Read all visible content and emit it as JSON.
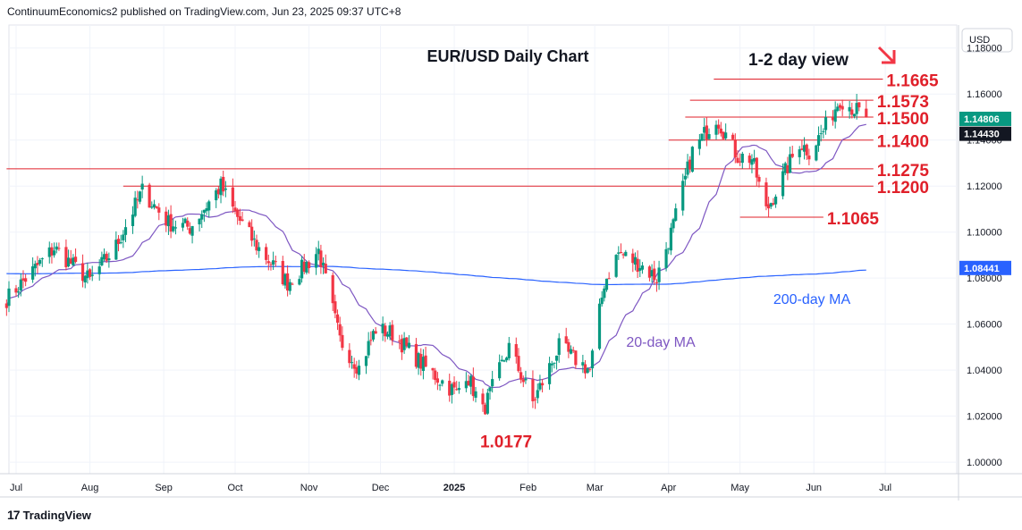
{
  "header": {
    "attribution": "ContinuumEconomics2 published on TradingView.com, Jun 23, 2025 09:37 UTC+8"
  },
  "footer": {
    "brand": "TradingView",
    "logo_glyph": "17"
  },
  "chart_data": {
    "type": "candlestick",
    "title": "EUR/USD Daily Chart",
    "subtitle": "1-2 day view",
    "currency": "USD",
    "colors": {
      "up": "#089981",
      "down": "#f23645",
      "ma20": "#7e57c2",
      "ma200": "#2962ff",
      "level": "#e0202a",
      "label": "#e0202a",
      "last": "#089981",
      "ma200_tag": "#2962ff"
    },
    "ylim": [
      0.995,
      1.19
    ],
    "y_ticks": [
      "1.00000",
      "1.02000",
      "1.04000",
      "1.06000",
      "1.08000",
      "1.10000",
      "1.12000",
      "1.14000",
      "1.16000",
      "1.18000"
    ],
    "x_ticks": [
      "Jul",
      "Aug",
      "Sep",
      "Oct",
      "Nov",
      "Dec",
      "2025",
      "Feb",
      "Mar",
      "Apr",
      "May",
      "Jun",
      "Jul"
    ],
    "levels": [
      {
        "label": "1.1665",
        "value": 1.1665,
        "from": "2025-04-20",
        "to": "2025-06-30"
      },
      {
        "label": "1.1573",
        "value": 1.1573,
        "from": "2025-04-10",
        "to": "2025-06-26"
      },
      {
        "label": "1.1500",
        "value": 1.15,
        "from": "2025-04-08",
        "to": "2025-06-26"
      },
      {
        "label": "1.1400",
        "value": 1.14,
        "from": "2025-04-01",
        "to": "2025-06-26"
      },
      {
        "label": "1.1275",
        "value": 1.1275,
        "from": "2024-06-27",
        "to": "2025-06-26"
      },
      {
        "label": "1.1200",
        "value": 1.12,
        "from": "2024-08-15",
        "to": "2025-06-26"
      },
      {
        "label": "1.1065",
        "value": 1.1065,
        "from": "2025-05-01",
        "to": "2025-06-05"
      }
    ],
    "low_label": {
      "label": "1.0177",
      "value": 1.0177,
      "date": "2025-01-13"
    },
    "ma_labels": {
      "ma20": "20-day MA",
      "ma200": "200-day MA"
    },
    "last_price": {
      "value": 1.14806,
      "label": "1.14806"
    },
    "ma20_price": {
      "value": 1.1443,
      "label": "1.14430"
    },
    "ma200_price": {
      "value": 1.08441,
      "label": "1.08441"
    },
    "anchors": [
      [
        "2024-06-27",
        1.071
      ],
      [
        "2024-07-17",
        1.093
      ],
      [
        "2024-08-01",
        1.079
      ],
      [
        "2024-08-12",
        1.094
      ],
      [
        "2024-08-23",
        1.118
      ],
      [
        "2024-09-03",
        1.104
      ],
      [
        "2024-09-12",
        1.102
      ],
      [
        "2024-09-25",
        1.12
      ],
      [
        "2024-10-01",
        1.108
      ],
      [
        "2024-10-10",
        1.094
      ],
      [
        "2024-10-23",
        1.078
      ],
      [
        "2024-10-31",
        1.086
      ],
      [
        "2024-11-05",
        1.092
      ],
      [
        "2024-11-14",
        1.053
      ],
      [
        "2024-11-22",
        1.041
      ],
      [
        "2024-11-29",
        1.058
      ],
      [
        "2024-12-06",
        1.056
      ],
      [
        "2024-12-20",
        1.041
      ],
      [
        "2025-01-02",
        1.03
      ],
      [
        "2025-01-06",
        1.039
      ],
      [
        "2025-01-13",
        1.022
      ],
      [
        "2025-01-24",
        1.05
      ],
      [
        "2025-02-03",
        1.026
      ],
      [
        "2025-02-14",
        1.05
      ],
      [
        "2025-02-27",
        1.04
      ],
      [
        "2025-03-05",
        1.078
      ],
      [
        "2025-03-11",
        1.091
      ],
      [
        "2025-03-20",
        1.086
      ],
      [
        "2025-03-27",
        1.08
      ],
      [
        "2025-04-03",
        1.103
      ],
      [
        "2025-04-11",
        1.135
      ],
      [
        "2025-04-21",
        1.15
      ],
      [
        "2025-04-30",
        1.133
      ],
      [
        "2025-05-06",
        1.132
      ],
      [
        "2025-05-12",
        1.109
      ],
      [
        "2025-05-26",
        1.139
      ],
      [
        "2025-05-30",
        1.135
      ],
      [
        "2025-06-05",
        1.144
      ],
      [
        "2025-06-12",
        1.158
      ],
      [
        "2025-06-20",
        1.152
      ],
      [
        "2025-06-23",
        1.148
      ]
    ]
  }
}
